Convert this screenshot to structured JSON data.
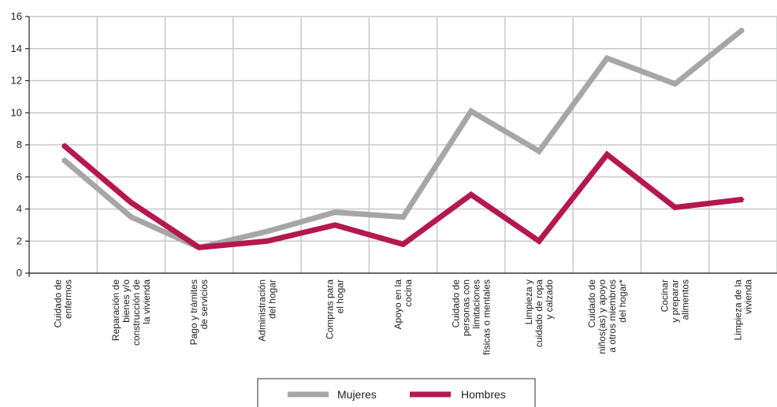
{
  "chart_data": {
    "type": "line",
    "categories": [
      "Cuidado de enfermos",
      "Reparación de bienes y/o construcción de la vivienda",
      "Pago y trámites de servicios",
      "Administración del hogar",
      "Compras para el hogar",
      "Apoyo en la cocina",
      "Cuidado de personas con limitaciones físicas o mentales",
      "Limpieza y cuidado de ropa y calzado",
      "Cuidado de niños(as) y apoyo a otros miembros del hogar*",
      "Cocinar y preparar alimentos",
      "Limpieza de la vivienda"
    ],
    "category_lines": [
      [
        "Cuidado de",
        "enfermos"
      ],
      [
        "Reparación de",
        "bienes y/o",
        "construcción de",
        "la vivienda"
      ],
      [
        "Pago y trámites",
        "de servicios"
      ],
      [
        "Administración",
        "del hogar"
      ],
      [
        "Compras para",
        "el hogar"
      ],
      [
        "Apoyo en la",
        "cocina"
      ],
      [
        "Cuidado de",
        "personas con",
        "limitaciones",
        "físicas o mentales"
      ],
      [
        "Limpieza y",
        "cuidado de ropa",
        "y calzado"
      ],
      [
        "Cuidado de",
        "niños(as) y apoyo",
        "a otros miembros",
        "del hogar*"
      ],
      [
        "Cocinar",
        "y preparar",
        "alimentos"
      ],
      [
        "Limpieza de la",
        "vivienda"
      ]
    ],
    "series": [
      {
        "name": "Mujeres",
        "color": "#a6a6a6",
        "values": [
          7.1,
          3.5,
          1.6,
          2.6,
          3.8,
          3.5,
          10.1,
          7.6,
          13.4,
          11.8,
          15.2
        ]
      },
      {
        "name": "Hombres",
        "color": "#b5174f",
        "values": [
          8.0,
          4.4,
          1.6,
          2.0,
          3.0,
          1.8,
          4.9,
          2.0,
          7.4,
          4.1,
          4.6
        ]
      }
    ],
    "yticks": [
      "0",
      "2",
      "4",
      "6",
      "8",
      "10",
      "12",
      "14",
      "16"
    ],
    "ylim": [
      0,
      16
    ],
    "grid": true,
    "legend_position": "bottom-center"
  }
}
